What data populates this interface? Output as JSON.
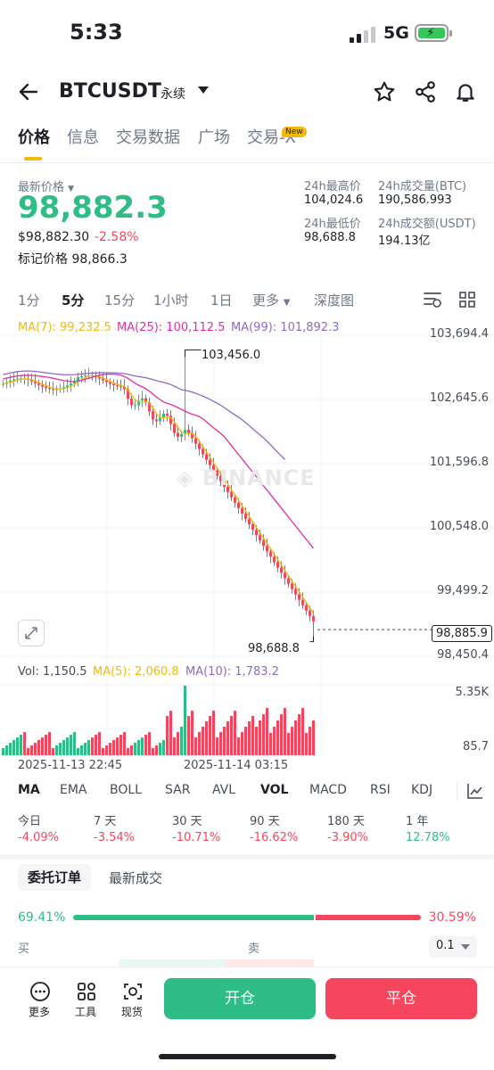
{
  "status": {
    "time": "5:33",
    "network": "5G"
  },
  "header": {
    "symbol": "BTCUSDT",
    "contract_type": "永续"
  },
  "tabs": [
    {
      "label": "价格"
    },
    {
      "label": "信息"
    },
    {
      "label": "交易数据"
    },
    {
      "label": "广场"
    },
    {
      "label": "交易-X",
      "badge": "New"
    }
  ],
  "ticker": {
    "last_price_label": "最新价格",
    "last_price": "98,882.3",
    "usd_price": "$98,882.30",
    "change_pct": "-2.58%",
    "mark_price_label": "标记价格",
    "mark_price": "98,866.3",
    "high_label": "24h最高价",
    "high": "104,024.6",
    "low_label": "24h最低价",
    "low": "98,688.8",
    "vol_btc_label": "24h成交量(BTC)",
    "vol_btc": "190,586.993",
    "vol_usdt_label": "24h成交额(USDT)",
    "vol_usdt": "194.13亿"
  },
  "intervals": [
    "1分",
    "5分",
    "15分",
    "1小时",
    "1日",
    "更多",
    "深度图"
  ],
  "ma_legend": {
    "ma7": "MA(7): 99,232.5",
    "ma25": "MA(25): 100,112.5",
    "ma99": "MA(99): 101,892.3"
  },
  "vol_legend": {
    "vol": "Vol: 1,150.5",
    "ma5": "MA(5): 2,060.8",
    "ma10": "MA(10): 1,783.2"
  },
  "chart_data": {
    "type": "candlestick",
    "price_axis": [
      "103,694.4",
      "102,645.6",
      "101,596.8",
      "100,548.0",
      "99,499.2",
      "98,450.4"
    ],
    "price_axis_values": [
      103694.4,
      102645.6,
      101596.8,
      100548.0,
      99499.2,
      98450.4
    ],
    "ylim": [
      98450.4,
      103694.4
    ],
    "high_marker": "103,456.0",
    "low_marker": "98,688.8",
    "current_price_tag": "98,885.9",
    "volume_axis": [
      "5.35K",
      "85.7"
    ],
    "x_ticks": [
      "2025-11-13 22:45",
      "2025-11-14 03:15"
    ],
    "watermark": "BINANCE",
    "colors": {
      "up": "#2ebd85",
      "down": "#f6465d",
      "ma7": "#f0b90b",
      "ma25": "#e0309f",
      "ma99": "#8e6ac8"
    }
  },
  "indicators": [
    "MA",
    "EMA",
    "BOLL",
    "SAR",
    "AVL",
    "VOL",
    "MACD",
    "RSI",
    "KDJ"
  ],
  "performance": [
    {
      "label": "今日",
      "value": "-4.09%"
    },
    {
      "label": "7 天",
      "value": "-3.54%"
    },
    {
      "label": "30 天",
      "value": "-10.71%"
    },
    {
      "label": "90 天",
      "value": "-16.62%"
    },
    {
      "label": "180 天",
      "value": "-3.90%"
    },
    {
      "label": "1 年",
      "value": "12.78%"
    }
  ],
  "orderbook": {
    "tab_active": "委托订单",
    "tab_other": "最新成交",
    "buy_ratio": "69.41%",
    "sell_ratio": "30.59%",
    "buy_ratio_value": 69.41,
    "buy_label": "买",
    "sell_label": "卖",
    "tick_size": "0.1"
  },
  "bottom": {
    "more": "更多",
    "tools": "工具",
    "spot": "现货",
    "open": "开仓",
    "close": "平仓"
  }
}
